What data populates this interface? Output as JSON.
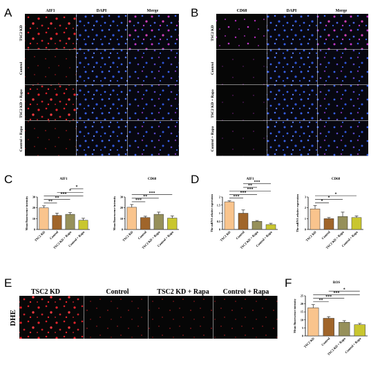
{
  "panels": {
    "A": {
      "label": "A",
      "columns": [
        "AIF1",
        "DAPI",
        "Merge"
      ],
      "rows": [
        "TSC2 KD",
        "Control",
        "TSC2 KD + Rapa",
        "Control + Rapa"
      ]
    },
    "B": {
      "label": "B",
      "columns": [
        "CD68",
        "DAPI",
        "Merge"
      ],
      "rows": [
        "TSC2 KD",
        "Control",
        "TSC2 KD + Rapa",
        "Control + Rapa"
      ]
    },
    "C": {
      "label": "C"
    },
    "D": {
      "label": "D"
    },
    "E": {
      "label": "E",
      "columns": [
        "TSC2 KD",
        "Control",
        "TSC2 KD + Rapa",
        "Control + Rapa"
      ],
      "row": "DHE"
    },
    "F": {
      "label": "F"
    }
  },
  "colors": {
    "tsc2kd": "#f9c48d",
    "control": "#a0652a",
    "tsc2kd_rapa": "#96905a",
    "control_rapa": "#c9c62f",
    "red_channel": "#e8242c",
    "blue_channel": "#3860e8",
    "magenta_channel": "#c038c8"
  },
  "chart_data": [
    {
      "id": "C1",
      "type": "bar",
      "title": "AIF1",
      "categories": [
        "TSC2 KD",
        "Control",
        "TSC2 KD + Rapa",
        "Control + Rapa"
      ],
      "values": [
        20,
        13,
        14,
        8.5
      ],
      "errors": [
        1.8,
        2,
        1.5,
        1.8
      ],
      "ylabel": "Mean fluorescence intensity",
      "ylim": [
        0,
        30
      ],
      "yticks": [
        0,
        10,
        20,
        30
      ],
      "significance": [
        {
          "from": 0,
          "to": 1,
          "label": "**"
        },
        {
          "from": 0,
          "to": 2,
          "label": "**"
        },
        {
          "from": 0,
          "to": 3,
          "label": "***"
        },
        {
          "from": 1,
          "to": 3,
          "label": "*"
        },
        {
          "from": 2,
          "to": 3,
          "label": "*"
        }
      ]
    },
    {
      "id": "C2",
      "type": "bar",
      "title": "CD68",
      "categories": [
        "TSC2 KD",
        "Control",
        "TSC2 KD + Rapa",
        "Control + Rapa"
      ],
      "values": [
        20.5,
        11,
        14,
        10.5
      ],
      "errors": [
        2.5,
        1.2,
        2,
        2
      ],
      "ylabel": "Mean fluorescence intensity",
      "ylim": [
        0,
        30
      ],
      "yticks": [
        0,
        10,
        20,
        30
      ],
      "significance": [
        {
          "from": 0,
          "to": 1,
          "label": "***"
        },
        {
          "from": 0,
          "to": 2,
          "label": "**"
        },
        {
          "from": 0,
          "to": 3,
          "label": "***"
        }
      ]
    },
    {
      "id": "D1",
      "type": "bar",
      "title": "AIF1",
      "categories": [
        "TSC2 KD",
        "Control",
        "TSC2 KD + Rapa",
        "Control + Rapa"
      ],
      "values": [
        1.7,
        1.0,
        0.5,
        0.3
      ],
      "errors": [
        0.06,
        0.2,
        0.05,
        0.08
      ],
      "ylabel": "The mRNA relative expression",
      "ylim": [
        0,
        2.0
      ],
      "yticks": [
        0.0,
        0.5,
        1.0,
        1.5,
        2.0
      ],
      "significance": [
        {
          "from": 0,
          "to": 1,
          "label": "***"
        },
        {
          "from": 0,
          "to": 2,
          "label": "***"
        },
        {
          "from": 0,
          "to": 3,
          "label": "***"
        },
        {
          "from": 1,
          "to": 2,
          "label": "**"
        },
        {
          "from": 1,
          "to": 3,
          "label": "***"
        }
      ]
    },
    {
      "id": "D2",
      "type": "bar",
      "title": "CD68",
      "categories": [
        "TSC2 KD",
        "Control",
        "TSC2 KD + Rapa",
        "Control + Rapa"
      ],
      "values": [
        1.9,
        1.0,
        1.2,
        1.1
      ],
      "errors": [
        0.3,
        0.1,
        0.4,
        0.15
      ],
      "ylabel": "The mRNA relative expression",
      "ylim": [
        0,
        3
      ],
      "yticks": [
        0,
        1,
        2,
        3
      ],
      "significance": [
        {
          "from": 0,
          "to": 1,
          "label": "*"
        },
        {
          "from": 0,
          "to": 2,
          "label": "*"
        },
        {
          "from": 0,
          "to": 3,
          "label": "*"
        }
      ]
    },
    {
      "id": "F",
      "type": "bar",
      "title": "ROS",
      "categories": [
        "TSC2 KD",
        "Control",
        "TSC2 KD + Rapa",
        "Control + Rapa"
      ],
      "values": [
        17.5,
        11,
        8.5,
        7
      ],
      "errors": [
        2,
        1,
        1,
        0.8
      ],
      "ylabel": "Mean fluorescence intensity",
      "ylim": [
        0,
        25
      ],
      "yticks": [
        0,
        5,
        10,
        15,
        20,
        25
      ],
      "significance": [
        {
          "from": 0,
          "to": 1,
          "label": "**"
        },
        {
          "from": 0,
          "to": 2,
          "label": "***"
        },
        {
          "from": 0,
          "to": 3,
          "label": "***"
        },
        {
          "from": 1,
          "to": 3,
          "label": "*"
        }
      ]
    }
  ]
}
